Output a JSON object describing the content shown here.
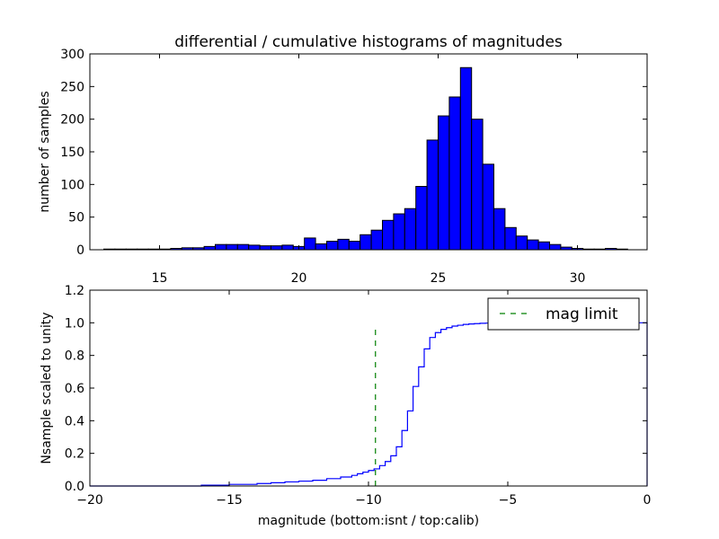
{
  "chart_data": [
    {
      "type": "bar",
      "title": "differential / cumulative histograms of magnitudes",
      "xlabel": "",
      "ylabel": "number of samples",
      "xlim": [
        12.5,
        32.5
      ],
      "ylim": [
        0,
        300
      ],
      "x_ticks": [
        "15",
        "20",
        "25",
        "30"
      ],
      "y_ticks": [
        "0",
        "50",
        "100",
        "150",
        "200",
        "250",
        "300"
      ],
      "bin_width": 0.4,
      "bin_centers": [
        13.2,
        13.6,
        14.0,
        14.4,
        14.8,
        15.2,
        15.6,
        16.0,
        16.4,
        16.8,
        17.2,
        17.6,
        18.0,
        18.4,
        18.8,
        19.2,
        19.6,
        20.0,
        20.4,
        20.8,
        21.2,
        21.6,
        22.0,
        22.4,
        22.8,
        23.2,
        23.6,
        24.0,
        24.4,
        24.8,
        25.2,
        25.6,
        26.0,
        26.4,
        26.8,
        27.2,
        27.6,
        28.0,
        28.4,
        28.8,
        29.2,
        29.6,
        30.0,
        30.4,
        30.8,
        31.2,
        31.6,
        32.0
      ],
      "values": [
        1,
        1,
        1,
        1,
        1,
        1,
        2,
        3,
        3,
        5,
        8,
        8,
        8,
        7,
        6,
        6,
        7,
        5,
        18,
        9,
        13,
        16,
        13,
        23,
        30,
        45,
        55,
        63,
        97,
        168,
        205,
        234,
        279,
        200,
        131,
        63,
        34,
        21,
        15,
        12,
        8,
        4,
        2,
        1,
        1,
        2,
        1,
        0
      ],
      "bar_color": "#0000ff",
      "grid": false
    },
    {
      "type": "line",
      "xlabel": "magnitude (bottom:isnt / top:calib)",
      "ylabel": "Nsample scaled to unity",
      "xlim": [
        -20,
        0
      ],
      "ylim": [
        0.0,
        1.2
      ],
      "x_ticks": [
        "−20",
        "−15",
        "−10",
        "−5",
        "0"
      ],
      "y_ticks": [
        "0.0",
        "0.2",
        "0.4",
        "0.6",
        "0.8",
        "1.0",
        "1.2"
      ],
      "grid": false,
      "legend_position": "upper-right",
      "series": [
        {
          "style": "step",
          "color": "#0000ff",
          "x": [
            -20.0,
            -16.0,
            -15.0,
            -14.0,
            -13.5,
            -13.0,
            -12.5,
            -12.0,
            -11.5,
            -11.0,
            -10.6,
            -10.4,
            -10.2,
            -10.0,
            -9.8,
            -9.6,
            -9.4,
            -9.2,
            -9.0,
            -8.8,
            -8.6,
            -8.4,
            -8.2,
            -8.0,
            -7.8,
            -7.6,
            -7.4,
            -7.2,
            -7.0,
            -6.8,
            -6.6,
            -6.4,
            -6.2,
            -6.0,
            -5.8,
            -5.6,
            -5.4,
            -5.0,
            -4.0,
            -3.0,
            -2.0,
            -1.0,
            -0.05,
            0.0
          ],
          "y": [
            0.0,
            0.005,
            0.01,
            0.015,
            0.02,
            0.025,
            0.03,
            0.035,
            0.045,
            0.055,
            0.065,
            0.075,
            0.085,
            0.095,
            0.105,
            0.125,
            0.15,
            0.185,
            0.24,
            0.34,
            0.46,
            0.61,
            0.73,
            0.84,
            0.91,
            0.94,
            0.96,
            0.97,
            0.98,
            0.985,
            0.99,
            0.993,
            0.995,
            0.997,
            0.998,
            0.999,
            1.0,
            1.0,
            1.0,
            1.0,
            1.0,
            1.0,
            1.0,
            0.0
          ]
        },
        {
          "name": "mag limit",
          "style": "dashed",
          "color": "#008000",
          "x": [
            -9.75,
            -9.75
          ],
          "y": [
            0.0,
            0.97
          ]
        }
      ]
    }
  ]
}
